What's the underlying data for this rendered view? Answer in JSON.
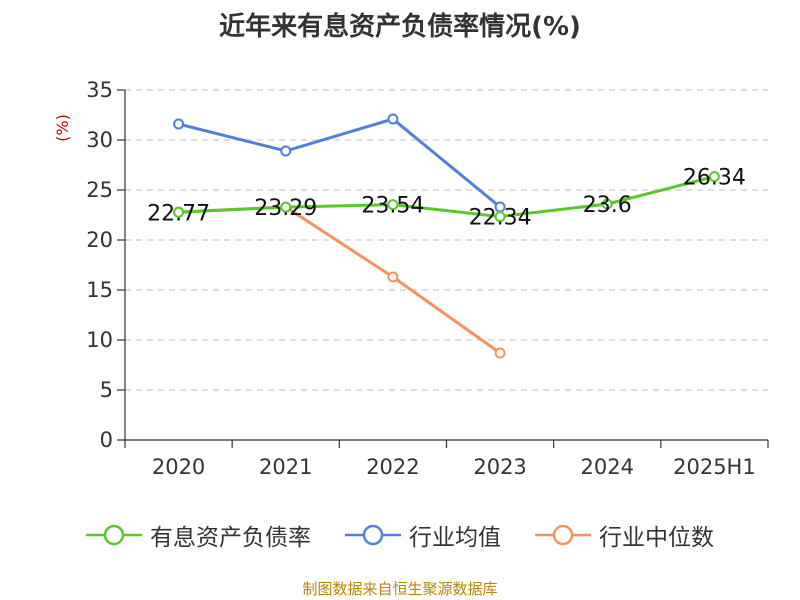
{
  "chart_data": {
    "type": "line",
    "title": "近年来有息资产负债率情况(%)",
    "ylabel": "(%)",
    "categories": [
      "2020",
      "2021",
      "2022",
      "2023",
      "2024",
      "2025H1"
    ],
    "ylim": [
      0,
      35
    ],
    "yticks": [
      0,
      5,
      10,
      15,
      20,
      25,
      30,
      35
    ],
    "grid": true,
    "legend_position": "bottom",
    "series": [
      {
        "name": "有息资产负债率",
        "color": "#5ac72a",
        "values": [
          22.77,
          23.29,
          23.54,
          22.34,
          23.6,
          26.34
        ],
        "labels": [
          "22.77",
          "23.29",
          "23.54",
          "22.34",
          "23.6",
          "26.34"
        ]
      },
      {
        "name": "行业均值",
        "color": "#4f7fde",
        "values": [
          31.6,
          28.9,
          32.1,
          23.3,
          null,
          null
        ]
      },
      {
        "name": "行业中位数",
        "color": "#f4935c",
        "values": [
          22.8,
          23.3,
          16.3,
          8.7,
          null,
          null
        ]
      }
    ]
  },
  "source": "制图数据来自恒生聚源数据库"
}
